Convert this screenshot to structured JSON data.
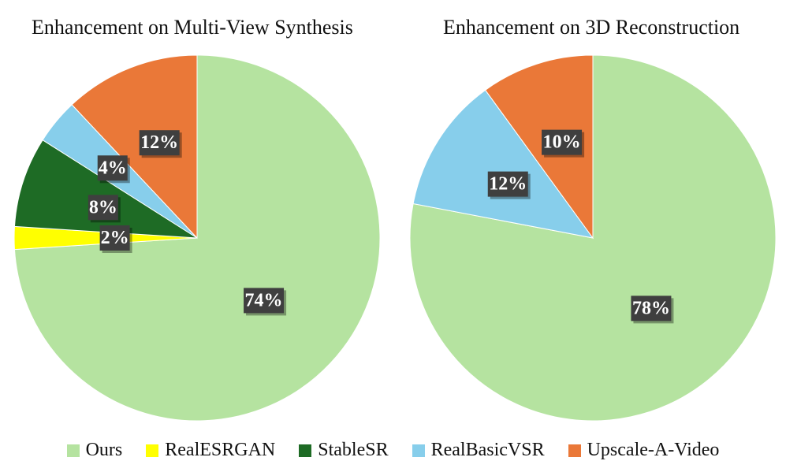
{
  "chart_data": [
    {
      "type": "pie",
      "title": "Enhancement on Multi-View Synthesis",
      "slices": [
        {
          "label": "Ours",
          "value": 74,
          "display": "74%"
        },
        {
          "label": "RealESRGAN",
          "value": 2,
          "display": "2%"
        },
        {
          "label": "StableSR",
          "value": 8,
          "display": "8%"
        },
        {
          "label": "RealBasicVSR",
          "value": 4,
          "display": "4%"
        },
        {
          "label": "Upscale-A-Video",
          "value": 12,
          "display": "12%"
        }
      ]
    },
    {
      "type": "pie",
      "title": "Enhancement on 3D Reconstruction",
      "slices": [
        {
          "label": "Ours",
          "value": 78,
          "display": "78%"
        },
        {
          "label": "RealESRGAN",
          "value": 0,
          "display": ""
        },
        {
          "label": "StableSR",
          "value": 0,
          "display": ""
        },
        {
          "label": "RealBasicVSR",
          "value": 12,
          "display": "12%"
        },
        {
          "label": "Upscale-A-Video",
          "value": 10,
          "display": "10%"
        }
      ]
    }
  ],
  "legend": [
    {
      "label": "Ours",
      "color": "#b5e3a0"
    },
    {
      "label": "RealESRGAN",
      "color": "#ffff00"
    },
    {
      "label": "StableSR",
      "color": "#1e6b25"
    },
    {
      "label": "RealBasicVSR",
      "color": "#87ceeb"
    },
    {
      "label": "Upscale-A-Video",
      "color": "#ea7838"
    }
  ]
}
